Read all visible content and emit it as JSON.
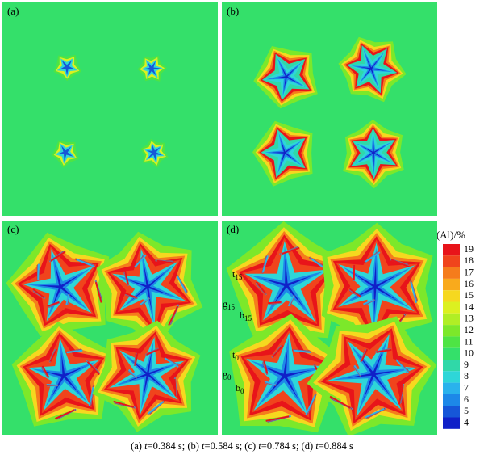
{
  "panels": [
    {
      "label": "(a)"
    },
    {
      "label": "(b)"
    },
    {
      "label": "(c)"
    },
    {
      "label": "(d)"
    }
  ],
  "annotations": [
    {
      "letter": "t",
      "sub": "15"
    },
    {
      "letter": "g",
      "sub": "15"
    },
    {
      "letter": "b",
      "sub": "15"
    },
    {
      "letter": "t",
      "sub": "0"
    },
    {
      "letter": "g",
      "sub": "0"
    },
    {
      "letter": "b",
      "sub": "0"
    }
  ],
  "colorbar": {
    "label_var": "c",
    "label_rest": "(Al)/%",
    "levels": [
      {
        "value": 19,
        "color": "#e8141a"
      },
      {
        "value": 18,
        "color": "#f0441c"
      },
      {
        "value": 17,
        "color": "#f57c1c"
      },
      {
        "value": 16,
        "color": "#f9aa1c"
      },
      {
        "value": 15,
        "color": "#f6d81f"
      },
      {
        "value": 14,
        "color": "#dcf020"
      },
      {
        "value": 13,
        "color": "#b0ee25"
      },
      {
        "value": 12,
        "color": "#7ce82a"
      },
      {
        "value": 11,
        "color": "#4ee444"
      },
      {
        "value": 10,
        "color": "#34e06a"
      },
      {
        "value": 9,
        "color": "#30d8a8"
      },
      {
        "value": 8,
        "color": "#2ed6d8"
      },
      {
        "value": 7,
        "color": "#2ab2ec"
      },
      {
        "value": 6,
        "color": "#1d88e8"
      },
      {
        "value": 5,
        "color": "#1656d8"
      },
      {
        "value": 4,
        "color": "#1020c8"
      }
    ]
  },
  "caption": [
    {
      "pre": "(a) ",
      "var": "t",
      "post": "=0.384 s; "
    },
    {
      "pre": "(b) ",
      "var": "t",
      "post": "=0.584 s; "
    },
    {
      "pre": "(c) ",
      "var": "t",
      "post": "=0.784 s; "
    },
    {
      "pre": "(d) ",
      "var": "t",
      "post": "=0.884 s"
    }
  ]
}
